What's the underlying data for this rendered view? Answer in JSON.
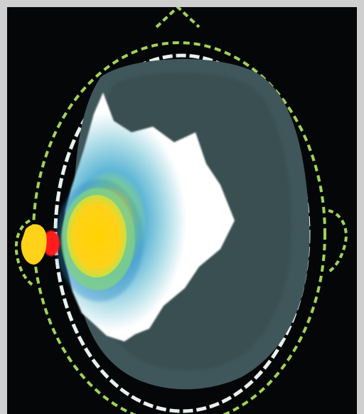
{
  "image": {
    "kind": "head-cross-section-heatmap",
    "background_color": "#050607",
    "frame_color": "#cfcfcf",
    "outline_color": "#9fd45a",
    "inner_outline_color": "#e8f2ec",
    "brain_color": "#3f575b",
    "heat_colors": [
      "#ffffff",
      "#a9dbe6",
      "#5fb6d6",
      "#2f86c9",
      "#7fd08a",
      "#ffd21a",
      "#ff1f1f"
    ]
  }
}
